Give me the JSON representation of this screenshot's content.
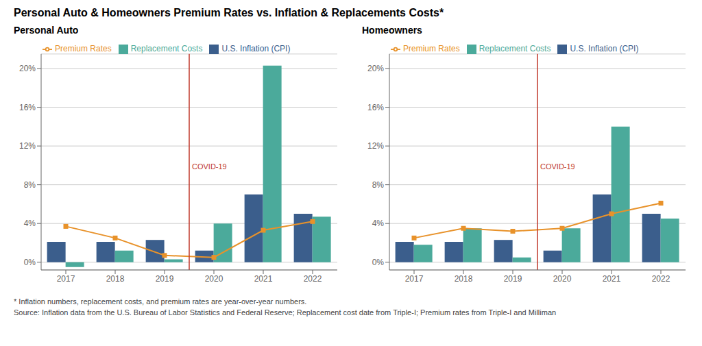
{
  "title": "Personal Auto & Homeowners Premium Rates vs. Inflation & Replacements Costs*",
  "annotations": [
    "* Inflation numbers, replacement costs, and premium rates are year-over-year numbers.",
    "Source: Inflation data from the U.S. Bureau of Labor Statistics and Federal Reserve; Replacement cost date from Triple-I; Premium rates from Triple-I and Milliman"
  ],
  "chart_data": [
    {
      "type": "bar",
      "title": "Personal Auto",
      "categories": [
        "2017",
        "2018",
        "2019",
        "2020",
        "2021",
        "2022"
      ],
      "series": [
        {
          "name": "U.S. Inflation (CPI)",
          "color": "#3B5E8C",
          "values": [
            2.1,
            2.1,
            2.3,
            1.2,
            7.0,
            5.0
          ]
        },
        {
          "name": "Replacement Costs",
          "color": "#4BAA9B",
          "values": [
            -0.5,
            1.2,
            0.3,
            4.0,
            20.3,
            4.7
          ]
        },
        {
          "name": "Premium Rates",
          "type": "line",
          "marker": "square",
          "color": "#E8922A",
          "values": [
            3.7,
            2.5,
            0.7,
            0.5,
            3.3,
            4.2
          ]
        }
      ],
      "ylim": [
        -0.8,
        21.5
      ],
      "yticks": [
        {
          "value": 0,
          "label": "0%"
        },
        {
          "value": 4,
          "label": "4%"
        },
        {
          "value": 8,
          "label": "8%"
        },
        {
          "value": 12,
          "label": "12%"
        },
        {
          "value": 16,
          "label": "16%"
        },
        {
          "value": 20,
          "label": "20%"
        }
      ],
      "grid": true,
      "legend": "upper left",
      "annotations": [
        {
          "text": "COVID-19",
          "between": [
            "2019",
            "2020"
          ],
          "y": 9.8,
          "color": "#C0392B"
        }
      ]
    },
    {
      "type": "bar",
      "title": "Homeowners",
      "categories": [
        "2017",
        "2018",
        "2019",
        "2020",
        "2021",
        "2022"
      ],
      "series": [
        {
          "name": "U.S. Inflation (CPI)",
          "color": "#3B5E8C",
          "values": [
            2.1,
            2.1,
            2.3,
            1.2,
            7.0,
            5.0
          ]
        },
        {
          "name": "Replacement Costs",
          "color": "#4BAA9B",
          "values": [
            1.8,
            3.5,
            0.5,
            3.5,
            14.0,
            4.5
          ]
        },
        {
          "name": "Premium Rates",
          "type": "line",
          "marker": "square",
          "color": "#E8922A",
          "values": [
            2.5,
            3.5,
            3.2,
            3.5,
            5.0,
            6.1
          ]
        }
      ],
      "ylim": [
        -0.8,
        21.5
      ],
      "yticks": [
        {
          "value": 0,
          "label": "0%"
        },
        {
          "value": 4,
          "label": "4%"
        },
        {
          "value": 8,
          "label": "8%"
        },
        {
          "value": 12,
          "label": "12%"
        },
        {
          "value": 16,
          "label": "16%"
        },
        {
          "value": 20,
          "label": "20%"
        }
      ],
      "grid": true,
      "legend": "upper left",
      "annotations": [
        {
          "text": "COVID-19",
          "between": [
            "2019",
            "2020"
          ],
          "y": 9.8,
          "color": "#C0392B"
        }
      ]
    }
  ]
}
